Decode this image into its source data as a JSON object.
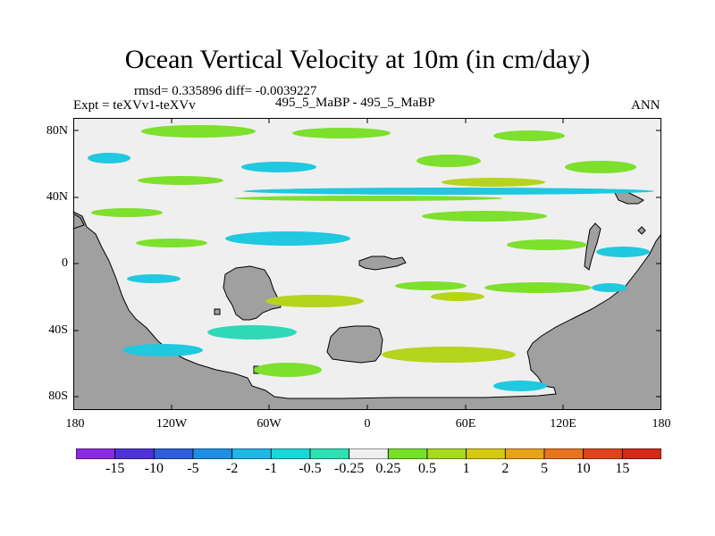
{
  "title": "Ocean Vertical Velocity at 10m (in cm/day)",
  "stats": "rmsd= 0.335896 diff= -0.0039227",
  "expt": "Expt = teXVv1-teXVv",
  "case": "495_5_MaBP - 495_5_MaBP",
  "season": "ANN",
  "lat_labels": [
    "80N",
    "40N",
    "0",
    "40S",
    "80S"
  ],
  "lon_labels": [
    "180",
    "120W",
    "60W",
    "0",
    "60E",
    "120E",
    "180"
  ],
  "colorbar": {
    "labels": [
      "-15",
      "-10",
      "-5",
      "-2",
      "-1",
      "-0.5",
      "-0.25",
      "0.25",
      "0.5",
      "1",
      "2",
      "5",
      "10",
      "15"
    ],
    "colors": [
      "#8a2be2",
      "#4e32d6",
      "#2e5fd9",
      "#1e8fe0",
      "#1fb7e6",
      "#1bd8d8",
      "#2fe0b4",
      "#efefef",
      "#76e02a",
      "#a8d91e",
      "#d6c912",
      "#e8a31a",
      "#e8741e",
      "#e0441e",
      "#d42a1a"
    ]
  },
  "colors": {
    "land": "#a0a0a0",
    "ocean": "#efefef",
    "green": "#7ce02c",
    "yellowgreen": "#b5d41c",
    "cyan": "#20c8e0",
    "teal": "#2fd8b8"
  }
}
